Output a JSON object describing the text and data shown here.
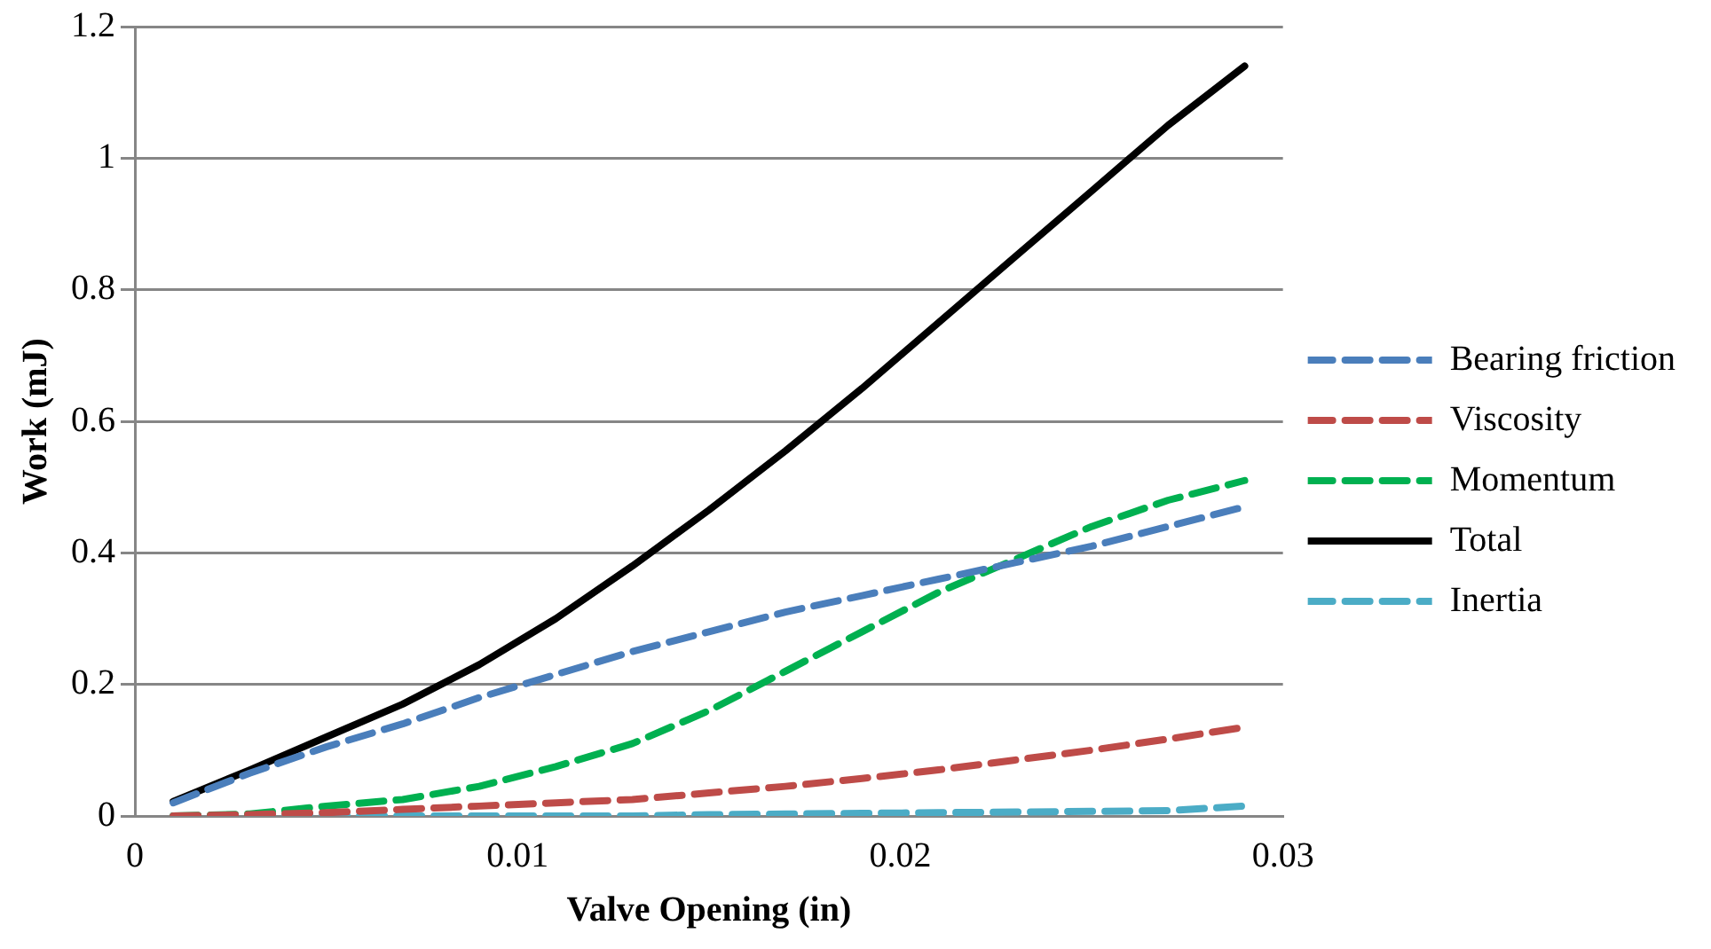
{
  "chart_data": {
    "type": "line",
    "xlabel": "Valve Opening (in)",
    "ylabel": "Work (mJ)",
    "x": [
      0.001,
      0.003,
      0.005,
      0.007,
      0.009,
      0.011,
      0.013,
      0.015,
      0.017,
      0.019,
      0.021,
      0.023,
      0.025,
      0.027,
      0.029
    ],
    "series": [
      {
        "name": "Bearing friction",
        "color": "#4a7ebb",
        "line_style": "dashed",
        "values": [
          0.02,
          0.065,
          0.105,
          0.14,
          0.18,
          0.215,
          0.25,
          0.28,
          0.31,
          0.335,
          0.36,
          0.385,
          0.41,
          0.44,
          0.47
        ]
      },
      {
        "name": "Viscosity",
        "color": "#be4b48",
        "line_style": "dashed",
        "values": [
          0,
          0.002,
          0.005,
          0.01,
          0.015,
          0.02,
          0.025,
          0.035,
          0.045,
          0.057,
          0.07,
          0.085,
          0.1,
          0.117,
          0.135
        ]
      },
      {
        "name": "Momentum",
        "color": "#00b050",
        "line_style": "dashed",
        "values": [
          0,
          0.003,
          0.015,
          0.025,
          0.045,
          0.075,
          0.11,
          0.16,
          0.22,
          0.28,
          0.34,
          0.39,
          0.44,
          0.48,
          0.51
        ]
      },
      {
        "name": "Total",
        "color": "#000000",
        "line_style": "solid",
        "values": [
          0.022,
          0.07,
          0.12,
          0.17,
          0.23,
          0.3,
          0.38,
          0.465,
          0.555,
          0.65,
          0.75,
          0.85,
          0.95,
          1.05,
          1.14
        ]
      },
      {
        "name": "Inertia",
        "color": "#4bacc6",
        "line_style": "dashed",
        "values": [
          0,
          0,
          0,
          0,
          0,
          0,
          0,
          0.002,
          0.003,
          0.004,
          0.005,
          0.006,
          0.007,
          0.008,
          0.015
        ]
      }
    ],
    "xlim": [
      0,
      0.03
    ],
    "xticks": [
      0,
      0.01,
      0.02,
      0.03
    ],
    "ylim": [
      0,
      1.2
    ],
    "yticks": [
      0,
      0.2,
      0.4,
      0.6,
      0.8,
      1,
      1.2
    ],
    "grid": "y",
    "legend": "right",
    "marker": "none"
  }
}
